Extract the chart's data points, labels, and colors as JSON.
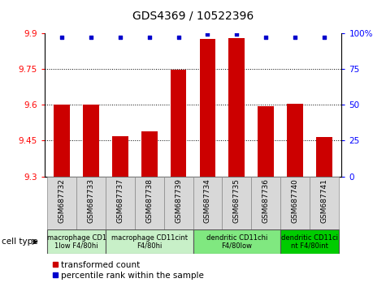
{
  "title": "GDS4369 / 10522396",
  "samples": [
    "GSM687732",
    "GSM687733",
    "GSM687737",
    "GSM687738",
    "GSM687739",
    "GSM687734",
    "GSM687735",
    "GSM687736",
    "GSM687740",
    "GSM687741"
  ],
  "red_values": [
    9.6,
    9.6,
    9.47,
    9.49,
    9.745,
    9.875,
    9.88,
    9.595,
    9.605,
    9.465
  ],
  "blue_values": [
    97,
    97,
    97,
    97,
    97,
    99,
    99,
    97,
    97,
    97
  ],
  "ylim_left": [
    9.3,
    9.9
  ],
  "ylim_right": [
    0,
    100
  ],
  "yticks_left": [
    9.3,
    9.45,
    9.6,
    9.75,
    9.9
  ],
  "yticks_right": [
    0,
    25,
    50,
    75,
    100
  ],
  "grid_lines": [
    9.45,
    9.6,
    9.75
  ],
  "cell_types": [
    {
      "label": "macrophage CD1\n1low F4/80hi",
      "start": 0,
      "end": 2,
      "color": "#c8f0c8"
    },
    {
      "label": "macrophage CD11cint\nF4/80hi",
      "start": 2,
      "end": 5,
      "color": "#c8f0c8"
    },
    {
      "label": "dendritic CD11chi\nF4/80low",
      "start": 5,
      "end": 8,
      "color": "#80e880"
    },
    {
      "label": "dendritic CD11ci\nnt F4/80int",
      "start": 8,
      "end": 10,
      "color": "#00cc00"
    }
  ],
  "legend_red": "transformed count",
  "legend_blue": "percentile rank within the sample",
  "bar_color": "#cc0000",
  "dot_color": "#0000cc",
  "bar_bottom": 9.3
}
